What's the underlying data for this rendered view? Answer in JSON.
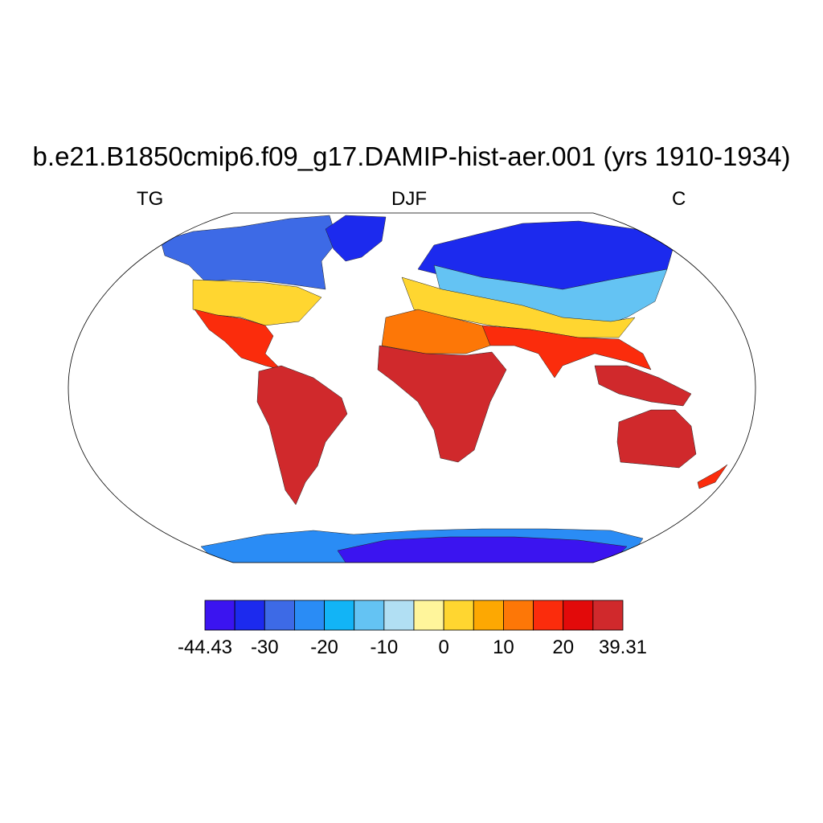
{
  "title": "b.e21.B1850cmip6.f09_g17.DAMIP-hist-aer.001 (yrs 1910-1934)",
  "subtitle_left": "TG",
  "subtitle_center": "DJF",
  "subtitle_right": "C",
  "colorbar": {
    "colors": [
      "#3b14f0",
      "#1c2aee",
      "#3d6ae6",
      "#2a8cf5",
      "#12b4f6",
      "#64c3f3",
      "#b1dff3",
      "#fff59b",
      "#ffd630",
      "#fda802",
      "#fd7707",
      "#fb2c0c",
      "#e20a0a",
      "#d0292c"
    ],
    "ticks": [
      "-44.43",
      "-30",
      "-20",
      "-10",
      "0",
      "10",
      "20",
      "39.31"
    ]
  },
  "map": {
    "projection": "robinson",
    "land_colors": {
      "cold": "#1c2aee",
      "cool": "#3d6ae6",
      "mid": "#64c3f3",
      "mild": "#ffd630",
      "warm": "#fd7707",
      "hot": "#fb2c0c",
      "tropic": "#d0292c",
      "ant_edge": "#2a8cf5",
      "ant_core": "#3b14f0"
    }
  }
}
